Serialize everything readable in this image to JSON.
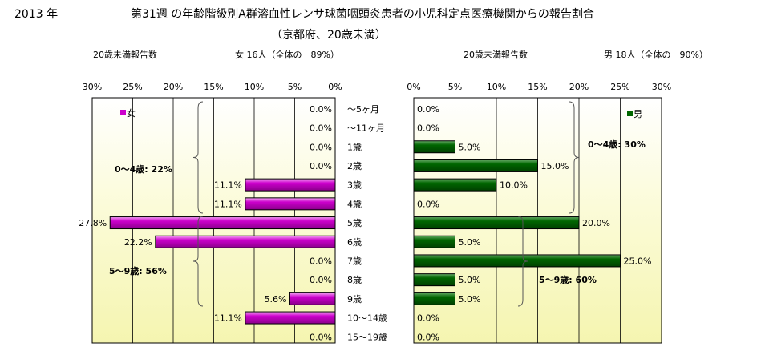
{
  "header": {
    "year": "2013 年",
    "title": "第31週 の年齢階級別A群溶血性レンサ球菌咽頭炎患者の小児科定点医療機関からの報告割合",
    "subtitle": "（京都府、20歳未満）"
  },
  "chart_data": [
    {
      "type": "bar",
      "orientation": "horizontal",
      "side": "female",
      "reported_label": "20歳未満報告数",
      "summary_label": "女 16人（全体の　89%）",
      "legend": "女",
      "color": "#cc00cc",
      "axis": {
        "xlim": [
          0,
          30
        ],
        "ticks": [
          "30%",
          "25%",
          "20%",
          "15%",
          "10%",
          "5%",
          "0%"
        ],
        "direction": "reversed"
      },
      "categories": [
        "～5ヶ月",
        "～11ヶ月",
        "1歳",
        "2歳",
        "3歳",
        "4歳",
        "5歳",
        "6歳",
        "7歳",
        "8歳",
        "9歳",
        "10～14歳",
        "15～19歳"
      ],
      "values": [
        0.0,
        0.0,
        0.0,
        0.0,
        11.1,
        11.1,
        27.8,
        22.2,
        0.0,
        0.0,
        5.6,
        11.1,
        0.0
      ],
      "value_labels": [
        "0.0%",
        "0.0%",
        "0.0%",
        "0.0%",
        "11.1%",
        "11.1%",
        "27.8%",
        "22.2%",
        "0.0%",
        "0.0%",
        "5.6%",
        "11.1%",
        "0.0%"
      ],
      "annotations": [
        "0～4歳:  22%",
        "5～9歳:  56%"
      ]
    },
    {
      "type": "bar",
      "orientation": "horizontal",
      "side": "male",
      "reported_label": "20歳未満報告数",
      "summary_label": "男 18人（全体の　90%）",
      "legend": "男",
      "color": "#006600",
      "axis": {
        "xlim": [
          0,
          30
        ],
        "ticks": [
          "0%",
          "5%",
          "10%",
          "15%",
          "20%",
          "25%",
          "30%"
        ],
        "direction": "normal"
      },
      "categories": [
        "～5ヶ月",
        "～11ヶ月",
        "1歳",
        "2歳",
        "3歳",
        "4歳",
        "5歳",
        "6歳",
        "7歳",
        "8歳",
        "9歳",
        "10～14歳",
        "15～19歳"
      ],
      "values": [
        0.0,
        0.0,
        5.0,
        15.0,
        10.0,
        0.0,
        20.0,
        5.0,
        25.0,
        5.0,
        5.0,
        0.0,
        0.0
      ],
      "value_labels": [
        "0.0%",
        "0.0%",
        "5.0%",
        "15.0%",
        "10.0%",
        "0.0%",
        "20.0%",
        "5.0%",
        "25.0%",
        "5.0%",
        "5.0%",
        "0.0%",
        "0.0%"
      ],
      "annotations": [
        "0～4歳:  30%",
        "5～9歳:  60%"
      ]
    }
  ]
}
